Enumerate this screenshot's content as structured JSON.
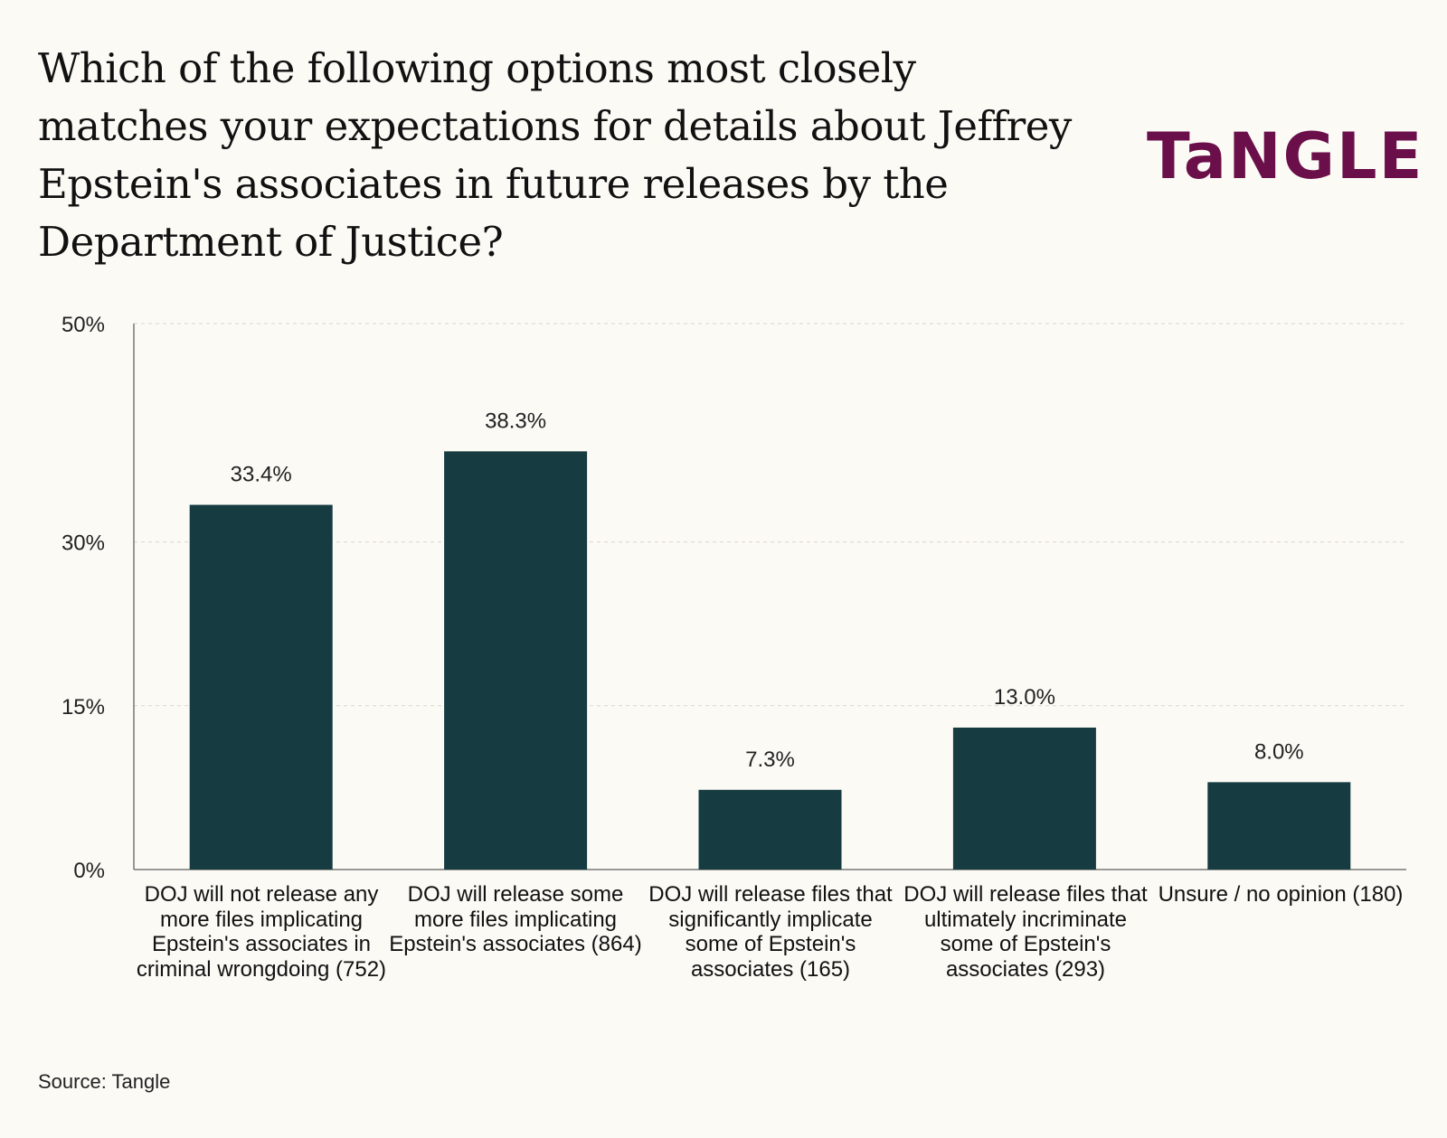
{
  "title": "Which of the following options most closely matches your expectations for details about Jeffrey Epstein's associates in future releases by the Department of Justice?",
  "brand": {
    "logo_text": "TaNGLE",
    "color": "#6b0f4a"
  },
  "source": "Source: Tangle",
  "colors": {
    "bar": "#163b40",
    "axis": "#777777",
    "grid": "#d9d6cc",
    "background": "#fbfaf5"
  },
  "chart_data": {
    "type": "bar",
    "title": "Which of the following options most closely matches your expectations for details about Jeffrey Epstein's associates in future releases by the Department of Justice?",
    "xlabel": "",
    "ylabel": "",
    "ylim": [
      0,
      50
    ],
    "y_ticks": [
      0,
      15,
      30,
      50
    ],
    "y_tick_labels": [
      "0%",
      "15%",
      "30%",
      "50%"
    ],
    "grid": "dashed horizontal",
    "categories": [
      "DOJ will not release any more files implicating Epstein's associates in criminal wrongdoing (752)",
      "DOJ will release some more files implicating Epstein's associates (864)",
      "DOJ will release files that significantly implicate some of Epstein's associates (165)",
      "DOJ will release files that ultimately incriminate some of Epstein's associates (293)",
      "Unsure / no opinion (180)"
    ],
    "values": [
      33.4,
      38.3,
      7.3,
      13.0,
      8.0
    ],
    "value_labels": [
      "33.4%",
      "38.3%",
      "7.3%",
      "13.0%",
      "8.0%"
    ]
  }
}
